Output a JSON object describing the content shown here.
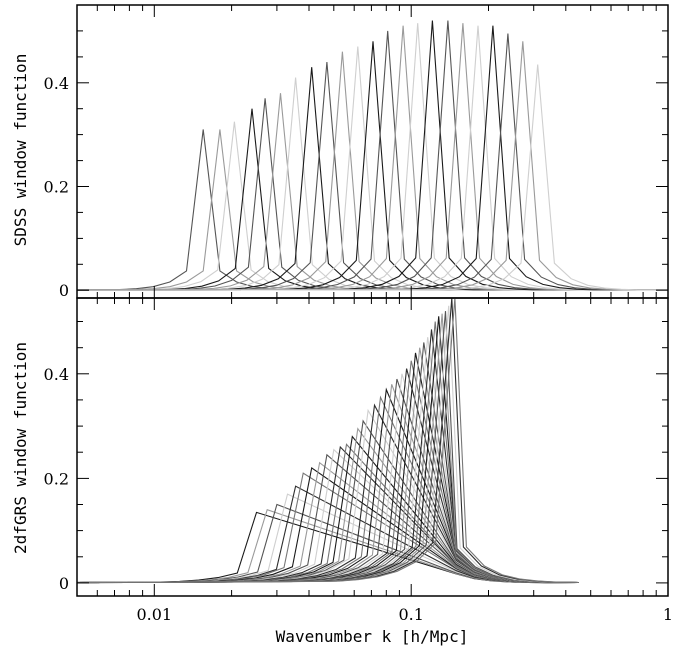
{
  "chart_data": [
    {
      "type": "line",
      "panel": "top",
      "ylabel": "SDSS window function",
      "xlabel": "",
      "xscale": "log",
      "xlim": [
        0.005,
        1
      ],
      "ylim": [
        -0.015,
        0.55
      ],
      "yticks": [
        "0",
        "0.2",
        "0.4"
      ],
      "grid": false,
      "legend": "none",
      "colors": [
        "#555555",
        "#9a9a9a",
        "#cfcfcf",
        "#1a1a1a"
      ],
      "curve_shape": {
        "base_fraction": 0.12,
        "log_halfwidth": 0.065,
        "tail_decay": 0.85,
        "tail_amplitude": 0.003
      },
      "series": [
        {
          "peak_k": 0.0155,
          "peak_w": 0.31
        },
        {
          "peak_k": 0.018,
          "peak_w": 0.31
        },
        {
          "peak_k": 0.0205,
          "peak_w": 0.325
        },
        {
          "peak_k": 0.024,
          "peak_w": 0.35
        },
        {
          "peak_k": 0.027,
          "peak_w": 0.37
        },
        {
          "peak_k": 0.031,
          "peak_w": 0.38
        },
        {
          "peak_k": 0.0355,
          "peak_w": 0.41
        },
        {
          "peak_k": 0.041,
          "peak_w": 0.43
        },
        {
          "peak_k": 0.047,
          "peak_w": 0.44
        },
        {
          "peak_k": 0.054,
          "peak_w": 0.46
        },
        {
          "peak_k": 0.062,
          "peak_w": 0.47
        },
        {
          "peak_k": 0.071,
          "peak_w": 0.48
        },
        {
          "peak_k": 0.081,
          "peak_w": 0.5
        },
        {
          "peak_k": 0.093,
          "peak_w": 0.51
        },
        {
          "peak_k": 0.106,
          "peak_w": 0.515
        },
        {
          "peak_k": 0.121,
          "peak_w": 0.52
        },
        {
          "peak_k": 0.139,
          "peak_w": 0.52
        },
        {
          "peak_k": 0.159,
          "peak_w": 0.515
        },
        {
          "peak_k": 0.182,
          "peak_w": 0.51
        },
        {
          "peak_k": 0.208,
          "peak_w": 0.51
        },
        {
          "peak_k": 0.238,
          "peak_w": 0.495
        },
        {
          "peak_k": 0.272,
          "peak_w": 0.48
        },
        {
          "peak_k": 0.311,
          "peak_w": 0.435
        }
      ]
    },
    {
      "type": "line",
      "panel": "bottom",
      "ylabel": "2dfGRS window function",
      "xlabel": "Wavenumber k [h/Mpc]",
      "xscale": "log",
      "xlim": [
        0.005,
        1
      ],
      "ylim": [
        -0.025,
        0.545
      ],
      "xticks": [
        "0.01",
        "0.1",
        "1"
      ],
      "yticks": [
        "0",
        "0.2",
        "0.4"
      ],
      "grid": false,
      "legend": "none",
      "colors": [
        "#1a1a1a",
        "#9a9a9a",
        "#555555",
        "#cfcfcf",
        "#2e2e2e",
        "#777777"
      ],
      "curve_shape": {
        "base_fraction": 0.14,
        "log_halfwidth": 0.075,
        "tail_decay": 0.62,
        "tail_amplitude": 0.003,
        "cutoff_k": 0.15,
        "right_edge_k": 0.45
      },
      "series": [
        {
          "peak_k": 0.025,
          "peak_w": 0.135
        },
        {
          "peak_k": 0.0275,
          "peak_w": 0.14
        },
        {
          "peak_k": 0.03,
          "peak_w": 0.15
        },
        {
          "peak_k": 0.033,
          "peak_w": 0.17
        },
        {
          "peak_k": 0.0355,
          "peak_w": 0.185
        },
        {
          "peak_k": 0.038,
          "peak_w": 0.21
        },
        {
          "peak_k": 0.041,
          "peak_w": 0.22
        },
        {
          "peak_k": 0.044,
          "peak_w": 0.23
        },
        {
          "peak_k": 0.047,
          "peak_w": 0.245
        },
        {
          "peak_k": 0.05,
          "peak_w": 0.255
        },
        {
          "peak_k": 0.053,
          "peak_w": 0.26
        },
        {
          "peak_k": 0.056,
          "peak_w": 0.265
        },
        {
          "peak_k": 0.059,
          "peak_w": 0.28
        },
        {
          "peak_k": 0.062,
          "peak_w": 0.295
        },
        {
          "peak_k": 0.065,
          "peak_w": 0.31
        },
        {
          "peak_k": 0.068,
          "peak_w": 0.33
        },
        {
          "peak_k": 0.072,
          "peak_w": 0.34
        },
        {
          "peak_k": 0.076,
          "peak_w": 0.355
        },
        {
          "peak_k": 0.08,
          "peak_w": 0.37
        },
        {
          "peak_k": 0.084,
          "peak_w": 0.38
        },
        {
          "peak_k": 0.088,
          "peak_w": 0.39
        },
        {
          "peak_k": 0.092,
          "peak_w": 0.4
        },
        {
          "peak_k": 0.096,
          "peak_w": 0.41
        },
        {
          "peak_k": 0.1,
          "peak_w": 0.425
        },
        {
          "peak_k": 0.104,
          "peak_w": 0.44
        },
        {
          "peak_k": 0.108,
          "peak_w": 0.45
        },
        {
          "peak_k": 0.112,
          "peak_w": 0.46
        },
        {
          "peak_k": 0.116,
          "peak_w": 0.47
        },
        {
          "peak_k": 0.12,
          "peak_w": 0.485
        },
        {
          "peak_k": 0.124,
          "peak_w": 0.5
        },
        {
          "peak_k": 0.128,
          "peak_w": 0.51
        },
        {
          "peak_k": 0.132,
          "peak_w": 0.515
        },
        {
          "peak_k": 0.136,
          "peak_w": 0.52
        },
        {
          "peak_k": 0.14,
          "peak_w": 0.53
        },
        {
          "peak_k": 0.144,
          "peak_w": 0.545
        },
        {
          "peak_k": 0.148,
          "peak_w": 0.545
        }
      ]
    }
  ]
}
